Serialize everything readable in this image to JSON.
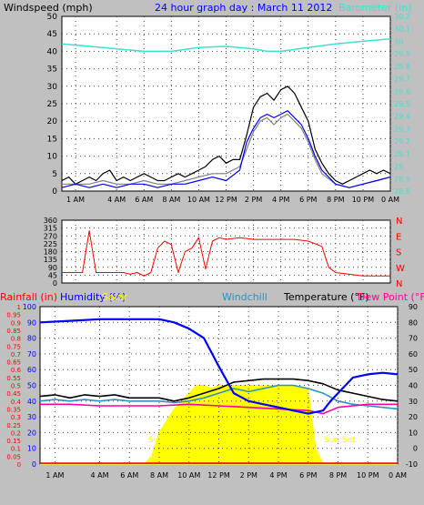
{
  "colors": {
    "background": "#c0c0c0",
    "plot_bg": "#ffffff",
    "wind": "#000000",
    "gust": "#808080",
    "wind_avg": "#0000ff",
    "barometer": "#40e0d0",
    "direction": "#ff0000",
    "humidity": "#0000ff",
    "temperature": "#000000",
    "windchill": "#3090c0",
    "dewpoint": "#ff00a0",
    "solar": "#ffff00",
    "rain": "#ff0000",
    "uv": "#808080"
  },
  "time_ticks": [
    "1 AM",
    "4 AM",
    "6 AM",
    "8 AM",
    "10 AM",
    "12 PM",
    "2 PM",
    "4 PM",
    "6 PM",
    "8 PM",
    "10 PM",
    "0 AM"
  ],
  "chart_data": [
    {
      "type": "line",
      "title": "24 hour graph day : March 11 2012",
      "ylabel": "Windspeed (mph)",
      "y2label": "Barometer (in)",
      "yticks": [
        "0",
        "5",
        "10",
        "15",
        "20",
        "25",
        "30",
        "35",
        "40",
        "45",
        "50"
      ],
      "ylim": [
        0,
        50
      ],
      "y2ticks": [
        "28.8",
        "28.9",
        "29",
        "29.1",
        "29.2",
        "29.3",
        "29.4",
        "29.5",
        "29.6",
        "29.7",
        "29.8",
        "29.9",
        "30",
        "30.1",
        "30.2"
      ],
      "y2lim": [
        28.8,
        30.2
      ],
      "grid": true,
      "series": [
        {
          "key": "wind",
          "axis": "y",
          "x": [
            0,
            0.5,
            1,
            1.5,
            2,
            2.5,
            3,
            3.5,
            4,
            4.5,
            5,
            5.5,
            6,
            6.5,
            7,
            7.5,
            8,
            8.5,
            9,
            9.5,
            10,
            10.5,
            11,
            11.5,
            12,
            12.5,
            13,
            13.5,
            14,
            14.5,
            15,
            15.5,
            16,
            16.5,
            17,
            17.5,
            18,
            18.5,
            19,
            19.5,
            20,
            20.5,
            21,
            21.5,
            22,
            22.5,
            23,
            23.5,
            24
          ],
          "values": [
            3,
            4,
            2,
            3,
            4,
            3,
            5,
            6,
            3,
            4,
            3,
            4,
            5,
            4,
            3,
            3,
            4,
            5,
            4,
            5,
            6,
            7,
            9,
            10,
            8,
            9,
            9,
            16,
            24,
            27,
            28,
            26,
            29,
            30,
            28,
            24,
            20,
            12,
            8,
            5,
            3,
            2,
            3,
            4,
            5,
            6,
            5,
            6,
            5
          ]
        },
        {
          "key": "gust",
          "axis": "y",
          "x": [
            0,
            1,
            2,
            3,
            4,
            5,
            6,
            7,
            8,
            9,
            10,
            11,
            12,
            13,
            13.5,
            14,
            14.5,
            15,
            15.5,
            16,
            16.5,
            17,
            17.5,
            18,
            18.5,
            19,
            20,
            21,
            22,
            23,
            24
          ],
          "values": [
            2,
            2,
            2,
            3,
            2,
            2,
            3,
            2,
            2,
            3,
            4,
            5,
            5,
            7,
            12,
            17,
            20,
            21,
            19,
            21,
            22,
            20,
            18,
            14,
            9,
            5,
            2,
            1,
            2,
            3,
            4
          ]
        },
        {
          "key": "wind_avg",
          "axis": "y",
          "x": [
            0,
            1,
            2,
            3,
            4,
            5,
            6,
            7,
            8,
            9,
            10,
            11,
            12,
            13,
            13.5,
            14,
            14.5,
            15,
            15.5,
            16,
            16.5,
            17,
            17.5,
            18,
            18.5,
            19,
            20,
            21,
            22,
            23,
            24
          ],
          "values": [
            1,
            2,
            1,
            2,
            1,
            2,
            2,
            1,
            2,
            2,
            3,
            4,
            3,
            6,
            14,
            18,
            21,
            22,
            21,
            22,
            23,
            21,
            19,
            15,
            10,
            6,
            2,
            1,
            2,
            3,
            4
          ]
        },
        {
          "key": "barometer",
          "axis": "y2",
          "x": [
            0,
            2,
            4,
            6,
            8,
            10,
            12,
            14,
            15,
            16,
            18,
            20,
            22,
            24
          ],
          "values": [
            29.98,
            29.96,
            29.94,
            29.92,
            29.92,
            29.95,
            29.96,
            29.94,
            29.92,
            29.92,
            29.95,
            29.98,
            30.0,
            30.02
          ]
        }
      ]
    },
    {
      "type": "scatter",
      "yticks": [
        "0",
        "45",
        "90",
        "135",
        "180",
        "225",
        "270",
        "315",
        "360"
      ],
      "ylim": [
        0,
        360
      ],
      "y2ticks": [
        "N",
        "W",
        "S",
        "E",
        "N"
      ],
      "grid": true,
      "series": [
        {
          "key": "direction",
          "x": [
            0,
            0.5,
            1,
            1.5,
            2,
            2.5,
            3,
            3.5,
            4,
            4.5,
            5,
            5.5,
            6,
            6.5,
            7,
            7.5,
            8,
            8.5,
            9,
            9.5,
            10,
            10.5,
            11,
            11.5,
            12,
            13,
            14,
            15,
            16,
            17,
            18,
            19,
            19.5,
            20,
            21,
            22,
            23,
            24
          ],
          "values": [
            60,
            60,
            60,
            60,
            300,
            60,
            60,
            60,
            60,
            60,
            50,
            60,
            40,
            60,
            200,
            240,
            220,
            60,
            180,
            200,
            260,
            80,
            240,
            260,
            250,
            260,
            250,
            250,
            250,
            250,
            240,
            210,
            90,
            60,
            50,
            40,
            40,
            40
          ]
        }
      ]
    },
    {
      "type": "line",
      "ylabels": [
        "Rainfall (in)",
        "Humidity (%)",
        "Solar",
        "Windchill",
        "Temperature (°F)",
        "Dew Point (°F)"
      ],
      "yticks_rain": [
        "0",
        "0.05",
        "0.1",
        "0.15",
        "0.2",
        "0.25",
        "0.3",
        "0.35",
        "0.4",
        "0.45",
        "0.5",
        "0.55",
        "0.6",
        "0.65",
        "0.7",
        "0.75",
        "0.8",
        "0.85",
        "0.9",
        "0.95",
        "1"
      ],
      "ylim_rain": [
        0,
        1
      ],
      "yticks_hum": [
        "0",
        "10",
        "20",
        "30",
        "40",
        "50",
        "60",
        "70",
        "80",
        "90",
        "100"
      ],
      "ylim_hum": [
        0,
        100
      ],
      "y2ticks": [
        "-10",
        "0",
        "10",
        "20",
        "30",
        "40",
        "50",
        "60",
        "70",
        "80",
        "90"
      ],
      "y2lim": [
        -10,
        90
      ],
      "annotations": [
        "Sun Rise",
        "Sun Set"
      ],
      "grid": true,
      "series": [
        {
          "key": "solar",
          "axis": "hum",
          "x": [
            0,
            7,
            7.5,
            8,
            9,
            10,
            10.5,
            11,
            11.5,
            12,
            13,
            14,
            15,
            16,
            17,
            18,
            18.5,
            19,
            24
          ],
          "values": [
            0,
            0,
            5,
            20,
            35,
            45,
            50,
            50,
            48,
            50,
            50,
            50,
            50,
            50,
            50,
            48,
            10,
            0,
            0
          ]
        },
        {
          "key": "temperature",
          "axis": "y2",
          "x": [
            0,
            1,
            2,
            3,
            4,
            5,
            6,
            7,
            8,
            9,
            10,
            11,
            12,
            13,
            14,
            15,
            16,
            17,
            18,
            19,
            20,
            21,
            22,
            23,
            24
          ],
          "values": [
            33,
            34,
            32,
            34,
            33,
            34,
            32,
            32,
            32,
            30,
            32,
            35,
            38,
            42,
            43,
            44,
            44,
            44,
            43,
            41,
            37,
            35,
            33,
            31,
            30
          ]
        },
        {
          "key": "windchill",
          "axis": "y2",
          "x": [
            0,
            1,
            2,
            3,
            4,
            5,
            6,
            7,
            8,
            9,
            10,
            11,
            12,
            13,
            14,
            15,
            16,
            17,
            18,
            19,
            20,
            21,
            22,
            23,
            24
          ],
          "values": [
            30,
            31,
            30,
            31,
            30,
            31,
            30,
            30,
            30,
            29,
            30,
            32,
            35,
            38,
            36,
            38,
            40,
            40,
            38,
            35,
            30,
            28,
            27,
            26,
            25
          ]
        },
        {
          "key": "dewpoint",
          "axis": "y2",
          "x": [
            0,
            2,
            4,
            6,
            8,
            10,
            12,
            14,
            16,
            18,
            19,
            20,
            22,
            24
          ],
          "values": [
            28,
            28,
            27,
            27,
            27,
            28,
            27,
            26,
            25,
            24,
            22,
            26,
            28,
            28
          ]
        },
        {
          "key": "humidity",
          "axis": "hum",
          "x": [
            0,
            2,
            4,
            6,
            8,
            9,
            10,
            11,
            12,
            13,
            14,
            15,
            16,
            17,
            18,
            19,
            19.5,
            20,
            21,
            22,
            23,
            24
          ],
          "values": [
            90,
            91,
            92,
            92,
            92,
            90,
            86,
            80,
            62,
            45,
            40,
            38,
            36,
            34,
            32,
            34,
            40,
            45,
            55,
            57,
            58,
            57
          ]
        },
        {
          "key": "rain",
          "axis": "rain",
          "x": [
            0,
            24
          ],
          "values": [
            0.005,
            0.005
          ]
        }
      ]
    }
  ]
}
